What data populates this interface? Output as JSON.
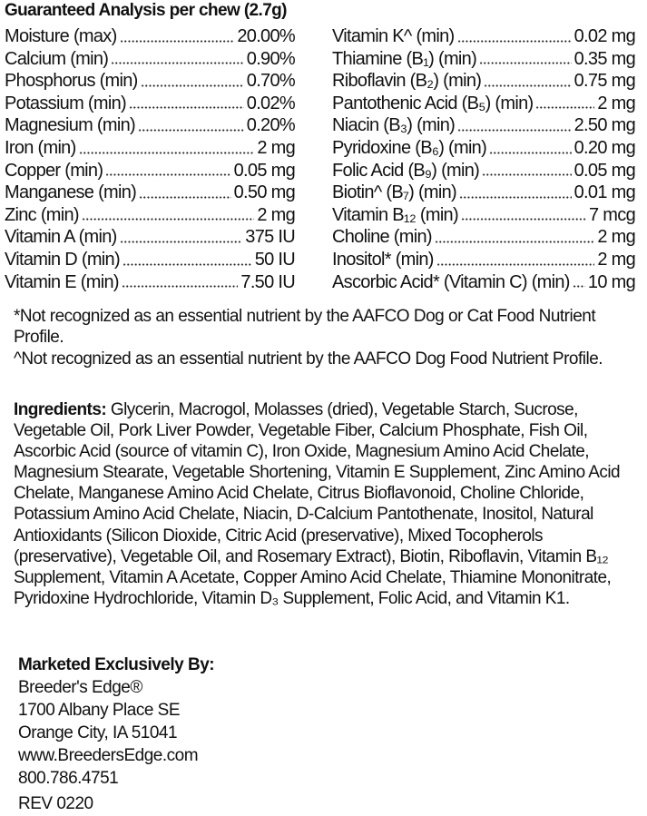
{
  "title": "Guaranteed Analysis per chew (2.7g)",
  "analysis_left": [
    {
      "label": "Moisture (max)",
      "value": "20.00%"
    },
    {
      "label": "Calcium (min)",
      "value": "0.90%"
    },
    {
      "label": "Phosphorus (min)",
      "value": "0.70%"
    },
    {
      "label": "Potassium (min)",
      "value": "0.02%"
    },
    {
      "label": "Magnesium (min)",
      "value": "0.20%"
    },
    {
      "label": "Iron (min)",
      "value": "2 mg"
    },
    {
      "label": "Copper (min)",
      "value": "0.05 mg"
    },
    {
      "label": "Manganese (min)",
      "value": "0.50 mg"
    },
    {
      "label": "Zinc (min)",
      "value": "2 mg"
    },
    {
      "label": "Vitamin A (min)",
      "value": "375 IU"
    },
    {
      "label": "Vitamin D (min)",
      "value": "50 IU"
    },
    {
      "label": "Vitamin E (min)",
      "value": "7.50 IU"
    }
  ],
  "analysis_right": [
    {
      "label": "Vitamin K^ (min)",
      "value": "0.02 mg"
    },
    {
      "label": "Thiamine (B₁) (min)",
      "value": "0.35 mg"
    },
    {
      "label": "Riboflavin (B₂) (min)",
      "value": "0.75 mg"
    },
    {
      "label": "Pantothenic Acid (B₅) (min)",
      "value": "2 mg"
    },
    {
      "label": "Niacin (B₃) (min)",
      "value": "2.50 mg"
    },
    {
      "label": "Pyridoxine (B₆) (min)",
      "value": "0.20 mg"
    },
    {
      "label": "Folic Acid (B₉) (min)",
      "value": "0.05 mg"
    },
    {
      "label": "Biotin^ (B₇) (min)",
      "value": "0.01 mg"
    },
    {
      "label": "Vitamin B₁₂ (min)",
      "value": "7 mcg"
    },
    {
      "label": "Choline (min)",
      "value": "2 mg"
    },
    {
      "label": "Inositol* (min)",
      "value": "2 mg"
    },
    {
      "label": "Ascorbic Acid* (Vitamin C) (min)",
      "value": "10 mg"
    }
  ],
  "notes": [
    "*Not recognized as an essential nutrient by the AAFCO Dog or Cat Food Nutrient Profile.",
    "^Not recognized as an essential nutrient by the AAFCO Dog Food Nutrient Profile."
  ],
  "ingredients": {
    "heading": "Ingredients:",
    "text": " Glycerin, Macrogol, Molasses (dried), Vegetable Starch, Sucrose, Vegetable Oil, Pork Liver Powder, Vegetable Fiber, Calcium Phosphate, Fish Oil, Ascorbic Acid (source of vitamin C), Iron Oxide, Magnesium Amino Acid Chelate, Magnesium Stearate, Vegetable Shortening, Vitamin E Supplement, Zinc Amino Acid Chelate, Manganese Amino Acid Chelate, Citrus Bioflavonoid, Choline Chloride, Potassium Amino Acid Chelate, Niacin, D-Calcium Pantothenate, Inositol, Natural Antioxidants (Silicon Dioxide, Citric Acid (preservative), Mixed Tocopherols (preservative), Vegetable Oil, and Rosemary Extract), Biotin, Riboflavin, Vitamin B₁₂ Supplement, Vitamin A Acetate, Copper Amino Acid Chelate, Thiamine Mononitrate, Pyridoxine Hydrochloride, Vitamin D₃ Supplement, Folic Acid, and Vitamin K1."
  },
  "marketer": {
    "heading": "Marketed Exclusively By:",
    "name": "Breeder's Edge®",
    "address1": "1700 Albany Place SE",
    "address2": "Orange City, IA 51041",
    "website": "www.BreedersEdge.com",
    "phone": "800.786.4751"
  },
  "revision": "REV 0220"
}
